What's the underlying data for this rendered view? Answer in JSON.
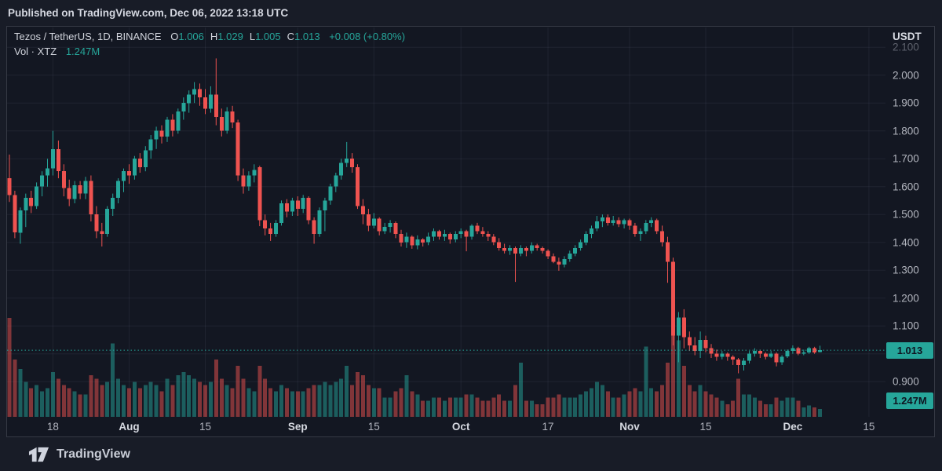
{
  "header": {
    "published_text": "Published on TradingView.com, Dec 06, 2022 13:18 UTC"
  },
  "legend": {
    "symbol_text": "Tezos / TetherUS, 1D, BINANCE",
    "ohlc": [
      {
        "k": "O",
        "v": "1.006"
      },
      {
        "k": "H",
        "v": "1.029"
      },
      {
        "k": "L",
        "v": "1.005"
      },
      {
        "k": "C",
        "v": "1.013"
      }
    ],
    "change": "+0.008 (+0.80%)",
    "volume_label": "Vol · XTZ",
    "volume_value": "1.247M"
  },
  "y_axis": {
    "currency": "USDT",
    "ticks": [
      {
        "label": "2.100",
        "value": 2.1,
        "dim": true
      },
      {
        "label": "2.000",
        "value": 2.0
      },
      {
        "label": "1.900",
        "value": 1.9
      },
      {
        "label": "1.800",
        "value": 1.8
      },
      {
        "label": "1.700",
        "value": 1.7
      },
      {
        "label": "1.600",
        "value": 1.6
      },
      {
        "label": "1.500",
        "value": 1.5
      },
      {
        "label": "1.400",
        "value": 1.4
      },
      {
        "label": "1.300",
        "value": 1.3
      },
      {
        "label": "1.200",
        "value": 1.2
      },
      {
        "label": "1.100",
        "value": 1.1
      },
      {
        "label": "0.900",
        "value": 0.9
      }
    ]
  },
  "badges": {
    "price": "1.013",
    "volume": "1.247M"
  },
  "footer": {
    "brand": "TradingView"
  },
  "chart_data": {
    "type": "candlestick",
    "title": "Tezos / TetherUS",
    "interval": "1D",
    "exchange": "BINANCE",
    "ylabel_currency": "USDT",
    "ylim": [
      0.874,
      2.171
    ],
    "grid": true,
    "last_price": 1.013,
    "last_volume_label": "1.247M",
    "colors": {
      "up": "#26a69a",
      "down": "#ef5350",
      "vol_up": "rgba(38,166,154,0.5)",
      "vol_down": "rgba(239,83,80,0.5)",
      "accent": "#26a69a",
      "grid": "rgba(140,150,175,0.10)",
      "badge_bg": "#26a69a",
      "badge_text": "#0e1420"
    },
    "x_ticks": [
      {
        "i": 8,
        "label": "18",
        "strong": false
      },
      {
        "i": 22,
        "label": "Aug",
        "strong": true
      },
      {
        "i": 36,
        "label": "15",
        "strong": false
      },
      {
        "i": 53,
        "label": "Sep",
        "strong": true
      },
      {
        "i": 67,
        "label": "15",
        "strong": false
      },
      {
        "i": 83,
        "label": "Oct",
        "strong": true
      },
      {
        "i": 99,
        "label": "17",
        "strong": false
      },
      {
        "i": 114,
        "label": "Nov",
        "strong": true
      },
      {
        "i": 128,
        "label": "15",
        "strong": false
      },
      {
        "i": 144,
        "label": "Dec",
        "strong": true
      },
      {
        "i": 158,
        "label": "15",
        "strong": false
      }
    ],
    "grid_prices": [
      2.1,
      2.0,
      1.9,
      1.8,
      1.7,
      1.6,
      1.5,
      1.4,
      1.3,
      1.2,
      1.1,
      1.0,
      0.9
    ],
    "candles": [
      [
        "Jul 10",
        1.63,
        1.715,
        1.545,
        1.57,
        15.5
      ],
      [
        "Jul 11",
        1.57,
        1.585,
        1.415,
        1.435,
        9.0
      ],
      [
        "Jul 12",
        1.435,
        1.525,
        1.395,
        1.515,
        7.5
      ],
      [
        "Jul 13",
        1.515,
        1.575,
        1.455,
        1.56,
        5.5
      ],
      [
        "Jul 14",
        1.56,
        1.585,
        1.505,
        1.53,
        4.5
      ],
      [
        "Jul 15",
        1.53,
        1.615,
        1.52,
        1.6,
        5.0
      ],
      [
        "Jul 16",
        1.6,
        1.655,
        1.565,
        1.64,
        4.0
      ],
      [
        "Jul 17",
        1.64,
        1.7,
        1.6,
        1.665,
        4.5
      ],
      [
        "Jul 18",
        1.665,
        1.8,
        1.64,
        1.735,
        7.0
      ],
      [
        "Jul 19",
        1.735,
        1.765,
        1.63,
        1.655,
        6.0
      ],
      [
        "Jul 20",
        1.655,
        1.68,
        1.565,
        1.595,
        5.0
      ],
      [
        "Jul 21",
        1.595,
        1.625,
        1.53,
        1.555,
        4.5
      ],
      [
        "Jul 22",
        1.555,
        1.62,
        1.54,
        1.605,
        4.0
      ],
      [
        "Jul 23",
        1.605,
        1.62,
        1.555,
        1.575,
        3.5
      ],
      [
        "Jul 24",
        1.575,
        1.635,
        1.555,
        1.62,
        3.5
      ],
      [
        "Jul 25",
        1.62,
        1.64,
        1.475,
        1.5,
        6.5
      ],
      [
        "Jul 26",
        1.5,
        1.53,
        1.415,
        1.44,
        6.0
      ],
      [
        "Jul 27",
        1.44,
        1.47,
        1.385,
        1.43,
        5.0
      ],
      [
        "Jul 28",
        1.43,
        1.53,
        1.42,
        1.52,
        5.5
      ],
      [
        "Jul 29",
        1.52,
        1.575,
        1.495,
        1.56,
        11.5
      ],
      [
        "Jul 30",
        1.56,
        1.63,
        1.54,
        1.62,
        6.0
      ],
      [
        "Jul 31",
        1.62,
        1.665,
        1.58,
        1.655,
        5.0
      ],
      [
        "Aug 1",
        1.655,
        1.68,
        1.61,
        1.64,
        4.5
      ],
      [
        "Aug 2",
        1.64,
        1.71,
        1.625,
        1.7,
        5.5
      ],
      [
        "Aug 3",
        1.7,
        1.72,
        1.65,
        1.67,
        4.5
      ],
      [
        "Aug 4",
        1.67,
        1.745,
        1.655,
        1.73,
        5.0
      ],
      [
        "Aug 5",
        1.73,
        1.785,
        1.7,
        1.77,
        5.5
      ],
      [
        "Aug 6",
        1.77,
        1.815,
        1.735,
        1.8,
        5.0
      ],
      [
        "Aug 7",
        1.8,
        1.82,
        1.755,
        1.78,
        4.0
      ],
      [
        "Aug 8",
        1.78,
        1.85,
        1.76,
        1.84,
        6.0
      ],
      [
        "Aug 9",
        1.84,
        1.86,
        1.78,
        1.8,
        5.0
      ],
      [
        "Aug 10",
        1.8,
        1.88,
        1.79,
        1.87,
        6.5
      ],
      [
        "Aug 11",
        1.87,
        1.92,
        1.84,
        1.9,
        7.0
      ],
      [
        "Aug 12",
        1.9,
        1.945,
        1.865,
        1.93,
        6.5
      ],
      [
        "Aug 13",
        1.93,
        1.975,
        1.9,
        1.95,
        6.0
      ],
      [
        "Aug 14",
        1.95,
        1.97,
        1.89,
        1.92,
        5.5
      ],
      [
        "Aug 15",
        1.92,
        1.95,
        1.86,
        1.88,
        5.0
      ],
      [
        "Aug 16",
        1.88,
        1.96,
        1.865,
        1.93,
        5.5
      ],
      [
        "Aug 17",
        1.93,
        2.06,
        1.82,
        1.85,
        9.0
      ],
      [
        "Aug 18",
        1.85,
        1.88,
        1.78,
        1.8,
        6.0
      ],
      [
        "Aug 19",
        1.8,
        1.885,
        1.79,
        1.87,
        5.0
      ],
      [
        "Aug 20",
        1.87,
        1.89,
        1.81,
        1.83,
        4.5
      ],
      [
        "Aug 21",
        1.83,
        1.84,
        1.62,
        1.64,
        8.0
      ],
      [
        "Aug 22",
        1.64,
        1.665,
        1.575,
        1.6,
        6.0
      ],
      [
        "Aug 23",
        1.6,
        1.655,
        1.585,
        1.64,
        4.5
      ],
      [
        "Aug 24",
        1.64,
        1.68,
        1.615,
        1.66,
        4.0
      ],
      [
        "Aug 25",
        1.67,
        1.675,
        1.458,
        1.48,
        8.0
      ],
      [
        "Aug 26",
        1.48,
        1.5,
        1.425,
        1.45,
        6.0
      ],
      [
        "Aug 27",
        1.45,
        1.47,
        1.405,
        1.43,
        4.5
      ],
      [
        "Aug 28",
        1.43,
        1.48,
        1.42,
        1.47,
        4.0
      ],
      [
        "Aug 29",
        1.47,
        1.55,
        1.46,
        1.54,
        5.0
      ],
      [
        "Aug 30",
        1.54,
        1.555,
        1.49,
        1.51,
        4.5
      ],
      [
        "Aug 31",
        1.51,
        1.56,
        1.495,
        1.55,
        4.0
      ],
      [
        "Sep 1",
        1.55,
        1.565,
        1.495,
        1.52,
        4.0
      ],
      [
        "Sep 2",
        1.52,
        1.57,
        1.505,
        1.56,
        4.0
      ],
      [
        "Sep 3",
        1.56,
        1.565,
        1.465,
        1.48,
        4.5
      ],
      [
        "Sep 4",
        1.48,
        1.49,
        1.395,
        1.43,
        5.0
      ],
      [
        "Sep 5",
        1.43,
        1.525,
        1.42,
        1.515,
        5.0
      ],
      [
        "Sep 6",
        1.515,
        1.56,
        1.44,
        1.55,
        5.5
      ],
      [
        "Sep 7",
        1.55,
        1.61,
        1.535,
        1.6,
        5.0
      ],
      [
        "Sep 8",
        1.6,
        1.65,
        1.58,
        1.64,
        5.5
      ],
      [
        "Sep 9",
        1.64,
        1.7,
        1.625,
        1.685,
        6.0
      ],
      [
        "Sep 10",
        1.685,
        1.76,
        1.67,
        1.7,
        8.0
      ],
      [
        "Sep 11",
        1.7,
        1.72,
        1.65,
        1.67,
        5.0
      ],
      [
        "Sep 12",
        1.67,
        1.68,
        1.52,
        1.53,
        7.0
      ],
      [
        "Sep 13",
        1.53,
        1.555,
        1.465,
        1.5,
        6.5
      ],
      [
        "Sep 14",
        1.5,
        1.52,
        1.44,
        1.46,
        5.0
      ],
      [
        "Sep 15",
        1.46,
        1.505,
        1.45,
        1.485,
        4.5
      ],
      [
        "Sep 16",
        1.485,
        1.49,
        1.425,
        1.44,
        4.5
      ],
      [
        "Sep 17",
        1.44,
        1.47,
        1.43,
        1.455,
        3.0
      ],
      [
        "Sep 18",
        1.455,
        1.48,
        1.435,
        1.47,
        3.0
      ],
      [
        "Sep 19",
        1.47,
        1.475,
        1.415,
        1.43,
        4.0
      ],
      [
        "Sep 20",
        1.43,
        1.445,
        1.385,
        1.4,
        4.5
      ],
      [
        "Sep 21",
        1.4,
        1.435,
        1.38,
        1.42,
        6.5
      ],
      [
        "Sep 22",
        1.42,
        1.425,
        1.377,
        1.39,
        4.0
      ],
      [
        "Sep 23",
        1.39,
        1.425,
        1.375,
        1.41,
        3.5
      ],
      [
        "Sep 24",
        1.41,
        1.415,
        1.385,
        1.4,
        2.5
      ],
      [
        "Sep 25",
        1.4,
        1.435,
        1.39,
        1.42,
        2.5
      ],
      [
        "Sep 26",
        1.42,
        1.45,
        1.405,
        1.44,
        3.0
      ],
      [
        "Sep 27",
        1.44,
        1.445,
        1.41,
        1.42,
        3.0
      ],
      [
        "Sep 28",
        1.42,
        1.445,
        1.405,
        1.43,
        2.5
      ],
      [
        "Sep 29",
        1.43,
        1.435,
        1.395,
        1.41,
        3.0
      ],
      [
        "Sep 30",
        1.41,
        1.44,
        1.4,
        1.43,
        3.0
      ],
      [
        "Oct 1",
        1.43,
        1.45,
        1.415,
        1.44,
        3.0
      ],
      [
        "Oct 2",
        1.44,
        1.445,
        1.368,
        1.42,
        3.5
      ],
      [
        "Oct 3",
        1.42,
        1.465,
        1.41,
        1.46,
        3.5
      ],
      [
        "Oct 4",
        1.46,
        1.47,
        1.43,
        1.44,
        3.0
      ],
      [
        "Oct 5",
        1.44,
        1.455,
        1.42,
        1.43,
        2.5
      ],
      [
        "Oct 6",
        1.43,
        1.44,
        1.405,
        1.42,
        2.5
      ],
      [
        "Oct 7",
        1.42,
        1.43,
        1.39,
        1.4,
        3.0
      ],
      [
        "Oct 8",
        1.4,
        1.415,
        1.37,
        1.38,
        3.5
      ],
      [
        "Oct 9",
        1.38,
        1.395,
        1.36,
        1.37,
        2.5
      ],
      [
        "Oct 10",
        1.37,
        1.39,
        1.355,
        1.38,
        2.5
      ],
      [
        "Oct 11",
        1.38,
        1.385,
        1.258,
        1.36,
        5.0
      ],
      [
        "Oct 12",
        1.36,
        1.39,
        1.35,
        1.38,
        8.5
      ],
      [
        "Oct 13",
        1.38,
        1.385,
        1.35,
        1.37,
        2.5
      ],
      [
        "Oct 14",
        1.37,
        1.4,
        1.36,
        1.39,
        2.5
      ],
      [
        "Oct 15",
        1.39,
        1.395,
        1.37,
        1.38,
        2.0
      ],
      [
        "Oct 16",
        1.38,
        1.385,
        1.36,
        1.37,
        2.0
      ],
      [
        "Oct 17",
        1.37,
        1.375,
        1.34,
        1.35,
        3.0
      ],
      [
        "Oct 18",
        1.35,
        1.36,
        1.325,
        1.33,
        3.0
      ],
      [
        "Oct 19",
        1.33,
        1.345,
        1.298,
        1.32,
        3.5
      ],
      [
        "Oct 20",
        1.32,
        1.35,
        1.31,
        1.34,
        3.0
      ],
      [
        "Oct 21",
        1.34,
        1.37,
        1.33,
        1.36,
        3.0
      ],
      [
        "Oct 22",
        1.36,
        1.39,
        1.35,
        1.38,
        3.0
      ],
      [
        "Oct 23",
        1.38,
        1.41,
        1.37,
        1.4,
        3.5
      ],
      [
        "Oct 24",
        1.4,
        1.44,
        1.39,
        1.43,
        4.0
      ],
      [
        "Oct 25",
        1.43,
        1.46,
        1.415,
        1.45,
        4.5
      ],
      [
        "Oct 26",
        1.45,
        1.495,
        1.44,
        1.475,
        5.5
      ],
      [
        "Oct 27",
        1.475,
        1.5,
        1.455,
        1.49,
        5.0
      ],
      [
        "Oct 28",
        1.49,
        1.5,
        1.46,
        1.47,
        4.0
      ],
      [
        "Oct 29",
        1.47,
        1.495,
        1.46,
        1.48,
        3.0
      ],
      [
        "Oct 30",
        1.48,
        1.49,
        1.455,
        1.465,
        3.0
      ],
      [
        "Oct 31",
        1.465,
        1.485,
        1.45,
        1.48,
        3.5
      ],
      [
        "Nov 1",
        1.48,
        1.485,
        1.445,
        1.46,
        4.0
      ],
      [
        "Nov 2",
        1.46,
        1.47,
        1.42,
        1.43,
        4.5
      ],
      [
        "Nov 3",
        1.43,
        1.45,
        1.405,
        1.44,
        4.0
      ],
      [
        "Nov 4",
        1.44,
        1.48,
        1.43,
        1.47,
        11.0
      ],
      [
        "Nov 5",
        1.47,
        1.49,
        1.455,
        1.48,
        4.5
      ],
      [
        "Nov 6",
        1.48,
        1.485,
        1.43,
        1.44,
        4.0
      ],
      [
        "Nov 7",
        1.44,
        1.46,
        1.385,
        1.4,
        5.0
      ],
      [
        "Nov 8",
        1.4,
        1.42,
        1.255,
        1.33,
        8.5
      ],
      [
        "Nov 9",
        1.33,
        1.345,
        1.03,
        1.065,
        13.5
      ],
      [
        "Nov 10",
        1.065,
        1.15,
        0.97,
        1.13,
        12.0
      ],
      [
        "Nov 11",
        1.13,
        1.16,
        1.02,
        1.06,
        8.0
      ],
      [
        "Nov 12",
        1.06,
        1.08,
        1.01,
        1.03,
        5.0
      ],
      [
        "Nov 13",
        1.03,
        1.06,
        0.995,
        1.01,
        4.0
      ],
      [
        "Nov 14",
        1.01,
        1.08,
        0.985,
        1.05,
        5.0
      ],
      [
        "Nov 15",
        1.05,
        1.065,
        1.005,
        1.02,
        4.0
      ],
      [
        "Nov 16",
        1.02,
        1.035,
        0.985,
        1.0,
        3.5
      ],
      [
        "Nov 17",
        1.0,
        1.015,
        0.975,
        0.99,
        3.0
      ],
      [
        "Nov 18",
        0.99,
        1.01,
        0.98,
        1.0,
        2.5
      ],
      [
        "Nov 19",
        1.0,
        1.005,
        0.975,
        0.99,
        2.0
      ],
      [
        "Nov 20",
        0.99,
        0.995,
        0.96,
        0.98,
        2.5
      ],
      [
        "Nov 21",
        0.98,
        0.985,
        0.93,
        0.96,
        6.0
      ],
      [
        "Nov 22",
        0.96,
        0.985,
        0.94,
        0.975,
        3.5
      ],
      [
        "Nov 23",
        0.975,
        1.01,
        0.965,
        1.0,
        3.5
      ],
      [
        "Nov 24",
        1.0,
        1.02,
        0.99,
        1.01,
        3.0
      ],
      [
        "Nov 25",
        1.01,
        1.015,
        0.985,
        1.0,
        2.5
      ],
      [
        "Nov 26",
        1.0,
        1.005,
        0.98,
        0.99,
        2.0
      ],
      [
        "Nov 27",
        0.99,
        1.01,
        0.985,
        1.0,
        2.0
      ],
      [
        "Nov 28",
        1.0,
        1.005,
        0.955,
        0.97,
        3.0
      ],
      [
        "Nov 29",
        0.97,
        0.995,
        0.96,
        0.99,
        2.5
      ],
      [
        "Nov 30",
        0.99,
        1.015,
        0.985,
        1.01,
        3.0
      ],
      [
        "Dec 1",
        1.01,
        1.03,
        1.0,
        1.02,
        3.0
      ],
      [
        "Dec 2",
        1.02,
        1.025,
        0.995,
        1.0,
        2.5
      ],
      [
        "Dec 3",
        1.0,
        1.015,
        0.995,
        1.005,
        1.5
      ],
      [
        "Dec 4",
        1.005,
        1.025,
        1.0,
        1.02,
        1.8
      ],
      [
        "Dec 5",
        1.02,
        1.025,
        1.0,
        1.005,
        1.5
      ],
      [
        "Dec 6",
        1.006,
        1.029,
        1.005,
        1.013,
        1.247
      ]
    ]
  }
}
